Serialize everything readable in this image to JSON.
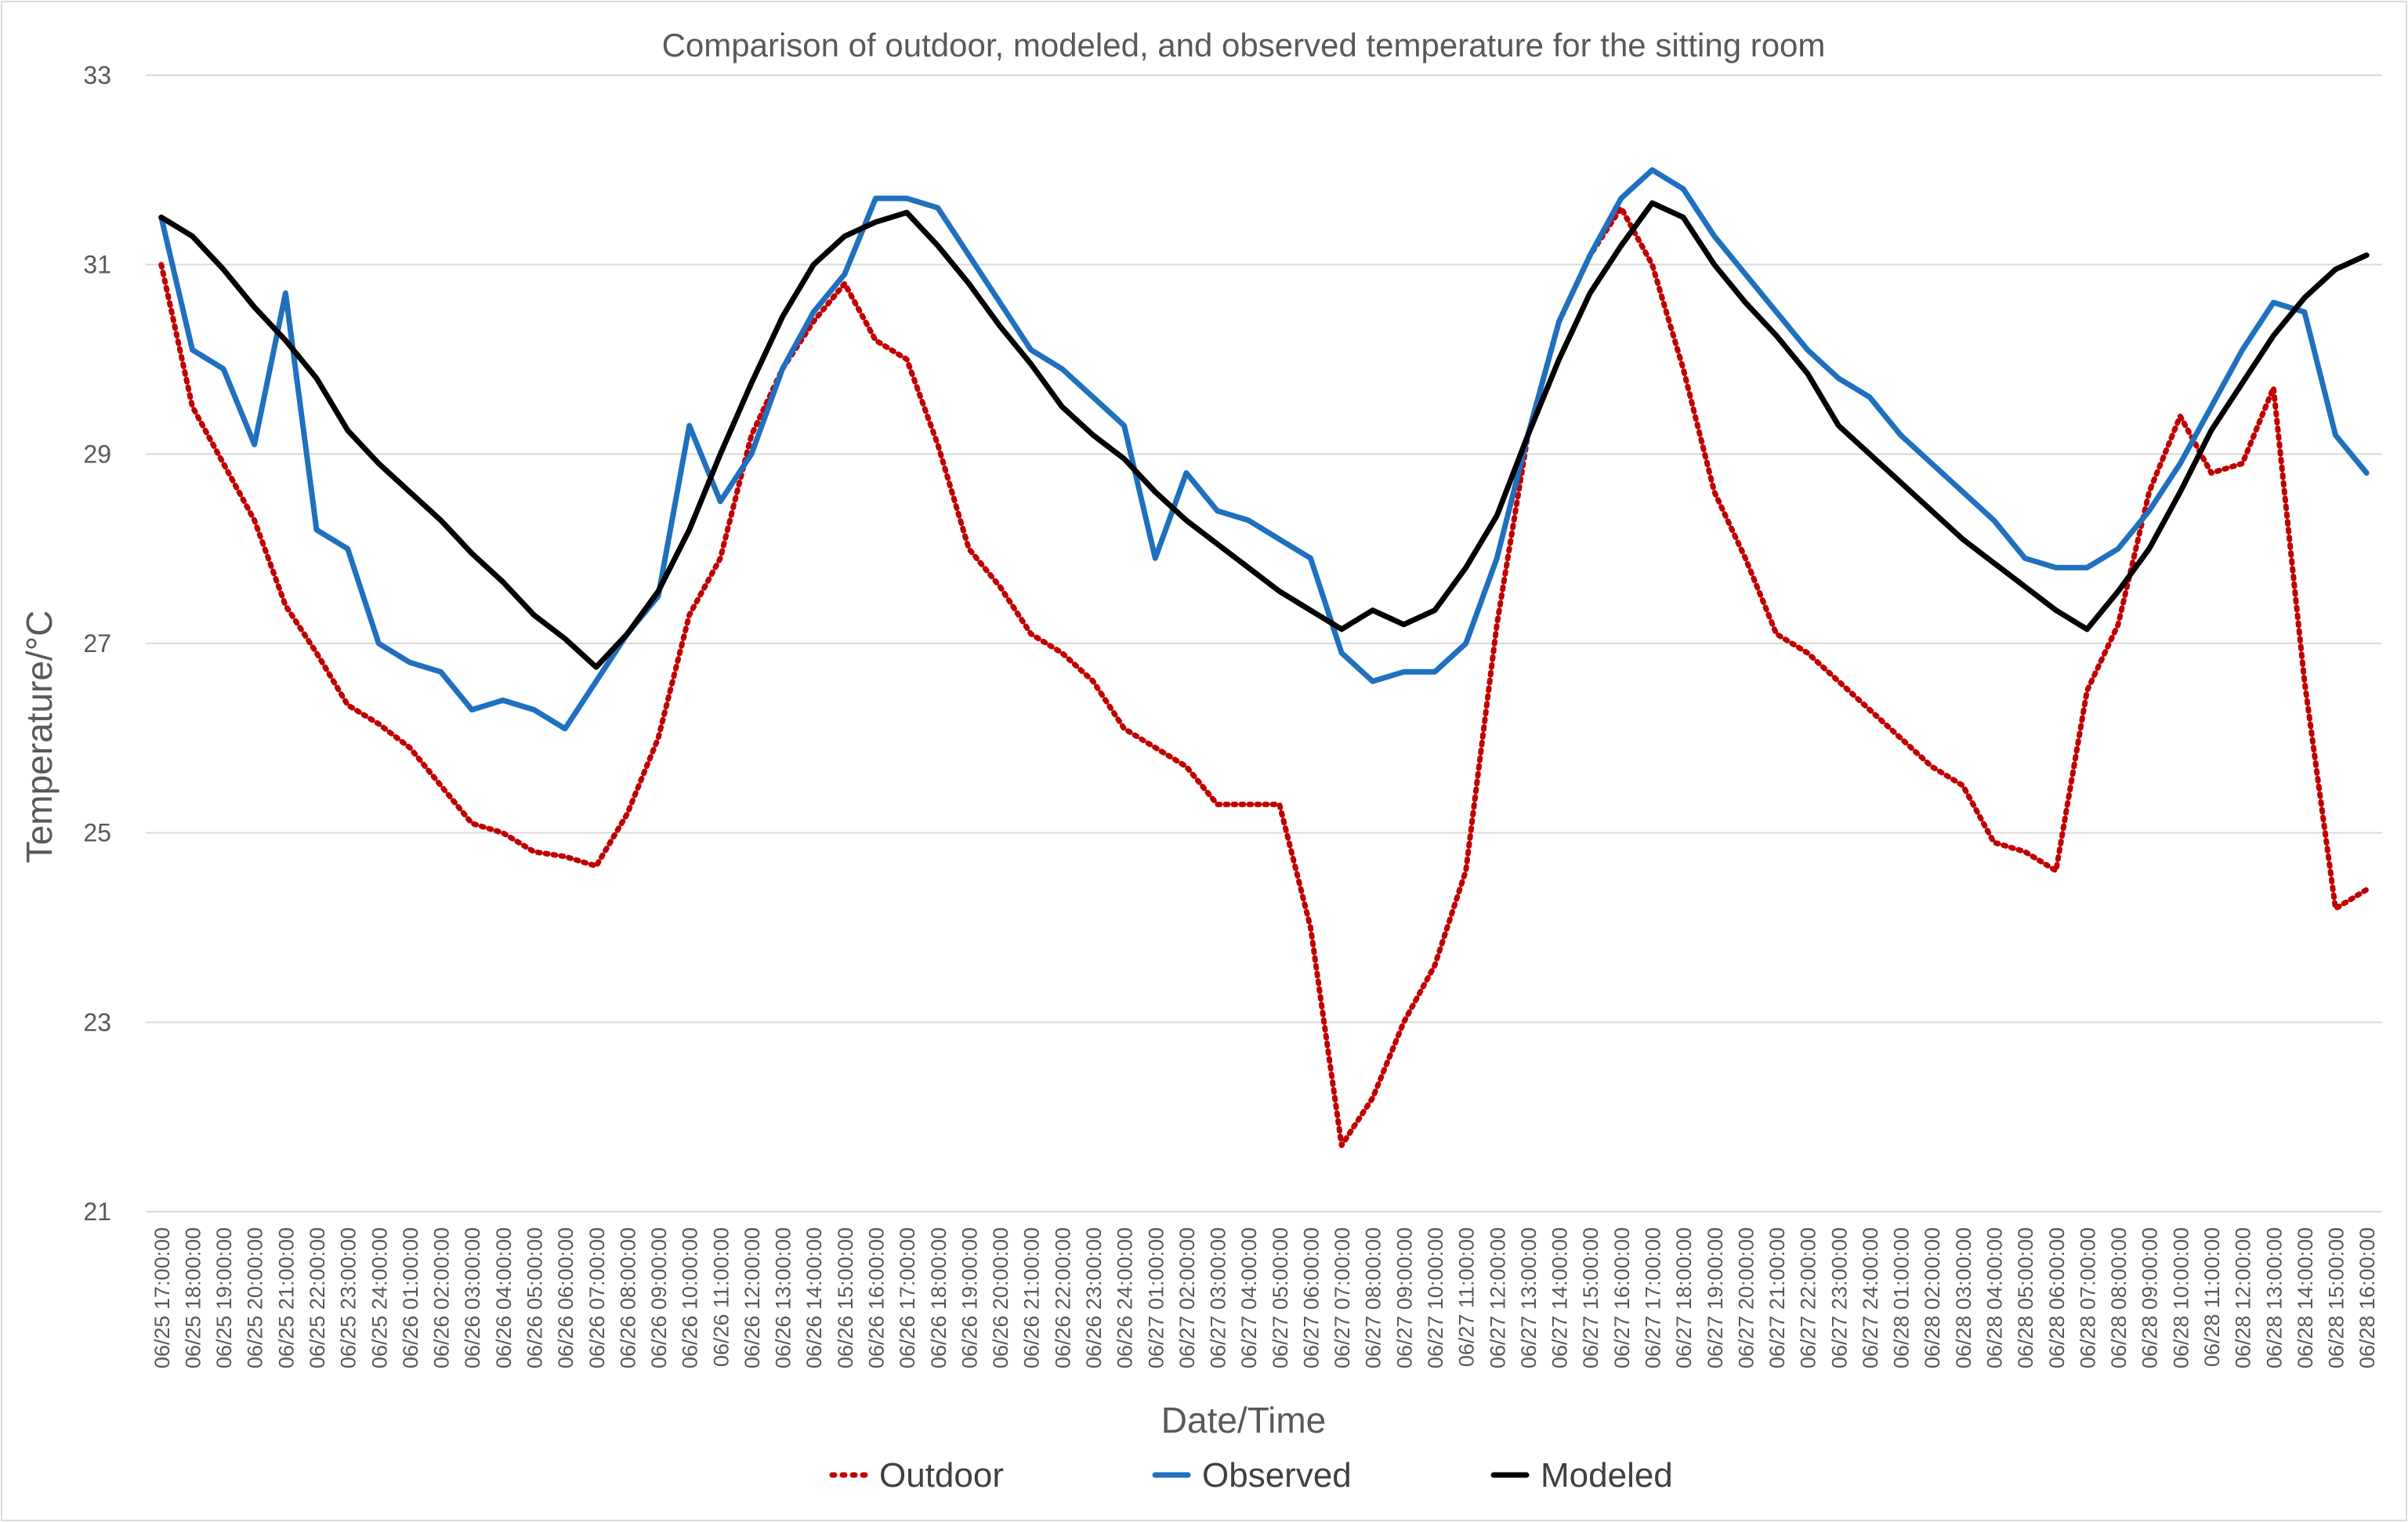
{
  "chart_data": {
    "type": "line",
    "title": "Comparison of outdoor, modeled, and observed temperature for the sitting room",
    "xlabel": "Date/Time",
    "ylabel": "Temperature/°C",
    "ylim": [
      21,
      33
    ],
    "yticks": [
      "21",
      "23",
      "25",
      "27",
      "29",
      "31",
      "33"
    ],
    "grid": true,
    "legend_position": "bottom",
    "categories": [
      "06/25 17:00:00",
      "06/25 18:00:00",
      "06/25 19:00:00",
      "06/25 20:00:00",
      "06/25 21:00:00",
      "06/25 22:00:00",
      "06/25 23:00:00",
      "06/25 24:00:00",
      "06/26 01:00:00",
      "06/26 02:00:00",
      "06/26 03:00:00",
      "06/26 04:00:00",
      "06/26 05:00:00",
      "06/26 06:00:00",
      "06/26 07:00:00",
      "06/26 08:00:00",
      "06/26 09:00:00",
      "06/26 10:00:00",
      "06/26 11:00:00",
      "06/26 12:00:00",
      "06/26 13:00:00",
      "06/26 14:00:00",
      "06/26 15:00:00",
      "06/26 16:00:00",
      "06/26 17:00:00",
      "06/26 18:00:00",
      "06/26 19:00:00",
      "06/26 20:00:00",
      "06/26 21:00:00",
      "06/26 22:00:00",
      "06/26 23:00:00",
      "06/26 24:00:00",
      "06/27 01:00:00",
      "06/27 02:00:00",
      "06/27 03:00:00",
      "06/27 04:00:00",
      "06/27 05:00:00",
      "06/27 06:00:00",
      "06/27 07:00:00",
      "06/27 08:00:00",
      "06/27 09:00:00",
      "06/27 10:00:00",
      "06/27 11:00:00",
      "06/27 12:00:00",
      "06/27 13:00:00",
      "06/27 14:00:00",
      "06/27 15:00:00",
      "06/27 16:00:00",
      "06/27 17:00:00",
      "06/27 18:00:00",
      "06/27 19:00:00",
      "06/27 20:00:00",
      "06/27 21:00:00",
      "06/27 22:00:00",
      "06/27 23:00:00",
      "06/27 24:00:00",
      "06/28 01:00:00",
      "06/28 02:00:00",
      "06/28 03:00:00",
      "06/28 04:00:00",
      "06/28 05:00:00",
      "06/28 06:00:00",
      "06/28 07:00:00",
      "06/28 08:00:00",
      "06/28 09:00:00",
      "06/28 10:00:00",
      "06/28 11:00:00",
      "06/28 12:00:00",
      "06/28 13:00:00",
      "06/28 14:00:00",
      "06/28 15:00:00",
      "06/28 16:00:00"
    ],
    "series": [
      {
        "name": "Outdoor",
        "color": "#C00000",
        "style": "dotted",
        "values": [
          31.0,
          29.5,
          28.9,
          28.3,
          27.4,
          26.9,
          26.35,
          26.15,
          25.9,
          25.5,
          25.1,
          25.0,
          24.8,
          24.75,
          24.65,
          25.2,
          26.0,
          27.3,
          27.9,
          29.2,
          29.9,
          30.4,
          30.8,
          30.2,
          30.0,
          29.1,
          28.0,
          27.6,
          27.1,
          26.9,
          26.6,
          26.1,
          25.9,
          25.7,
          25.3,
          25.3,
          25.3,
          24.0,
          21.7,
          22.2,
          23.0,
          23.6,
          24.6,
          27.2,
          29.2,
          30.4,
          31.1,
          31.6,
          31.0,
          29.9,
          28.6,
          27.9,
          27.1,
          26.9,
          26.6,
          26.3,
          26.0,
          25.7,
          25.5,
          24.9,
          24.8,
          24.6,
          26.5,
          27.2,
          28.6,
          29.4,
          28.8,
          28.9,
          29.7,
          26.6,
          24.2,
          24.4
        ]
      },
      {
        "name": "Observed",
        "color": "#1F70BE",
        "style": "solid",
        "values": [
          31.5,
          30.1,
          29.9,
          29.1,
          30.7,
          28.2,
          28.0,
          27.0,
          26.8,
          26.7,
          26.3,
          26.4,
          26.3,
          26.1,
          26.6,
          27.1,
          27.5,
          29.3,
          28.5,
          29.0,
          29.9,
          30.5,
          30.9,
          31.7,
          31.7,
          31.6,
          31.1,
          30.6,
          30.1,
          29.9,
          29.6,
          29.3,
          27.9,
          28.8,
          28.4,
          28.3,
          28.1,
          27.9,
          26.9,
          26.6,
          26.7,
          26.7,
          27.0,
          27.9,
          29.2,
          30.4,
          31.1,
          31.7,
          32.0,
          31.8,
          31.3,
          30.9,
          30.5,
          30.1,
          29.8,
          29.6,
          29.2,
          28.9,
          28.6,
          28.3,
          27.9,
          27.8,
          27.8,
          28.0,
          28.4,
          28.9,
          29.5,
          30.1,
          30.6,
          30.5,
          29.2,
          28.8
        ]
      },
      {
        "name": "Modeled",
        "color": "#000000",
        "style": "solid",
        "values": [
          31.5,
          31.3,
          30.95,
          30.55,
          30.2,
          29.8,
          29.25,
          28.9,
          28.6,
          28.3,
          27.95,
          27.65,
          27.3,
          27.05,
          26.75,
          27.1,
          27.55,
          28.2,
          29.0,
          29.75,
          30.45,
          31.0,
          31.3,
          31.45,
          31.55,
          31.2,
          30.8,
          30.35,
          29.95,
          29.5,
          29.2,
          28.95,
          28.6,
          28.3,
          28.05,
          27.8,
          27.55,
          27.35,
          27.15,
          27.35,
          27.2,
          27.35,
          27.8,
          28.35,
          29.2,
          30.0,
          30.7,
          31.2,
          31.65,
          31.5,
          31.0,
          30.6,
          30.25,
          29.85,
          29.3,
          29.0,
          28.7,
          28.4,
          28.1,
          27.85,
          27.6,
          27.35,
          27.15,
          27.55,
          28.0,
          28.6,
          29.25,
          29.75,
          30.25,
          30.65,
          30.95,
          31.1
        ]
      }
    ]
  }
}
